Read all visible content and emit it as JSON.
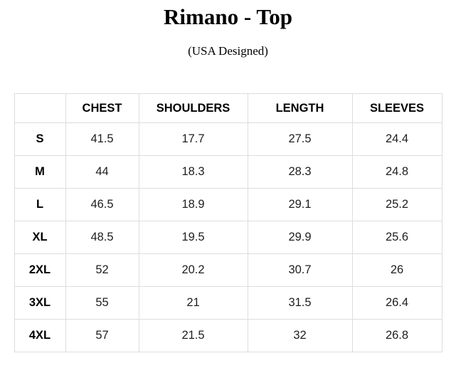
{
  "page": {
    "title": "Rimano - Top",
    "subtitle": "(USA Designed)"
  },
  "colors": {
    "background": "#ffffff",
    "heading_text": "#000000",
    "value_text": "#1e1e1e",
    "table_border": "#dddddd"
  },
  "table": {
    "headers": [
      "",
      "CHEST",
      "SHOULDERS",
      "LENGTH",
      "SLEEVES"
    ],
    "rows": [
      {
        "size": "S",
        "values": [
          "41.5",
          "17.7",
          "27.5",
          "24.4"
        ]
      },
      {
        "size": "M",
        "values": [
          "44",
          "18.3",
          "28.3",
          "24.8"
        ]
      },
      {
        "size": "L",
        "values": [
          "46.5",
          "18.9",
          "29.1",
          "25.2"
        ]
      },
      {
        "size": "XL",
        "values": [
          "48.5",
          "19.5",
          "29.9",
          "25.6"
        ]
      },
      {
        "size": "2XL",
        "values": [
          "52",
          "20.2",
          "30.7",
          "26"
        ]
      },
      {
        "size": "3XL",
        "values": [
          "55",
          "21",
          "31.5",
          "26.4"
        ]
      },
      {
        "size": "4XL",
        "values": [
          "57",
          "21.5",
          "32",
          "26.8"
        ]
      }
    ]
  }
}
